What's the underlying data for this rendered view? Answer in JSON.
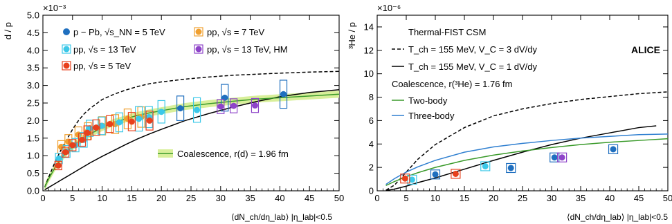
{
  "chart_data": [
    {
      "type": "scatter",
      "ylabel": "d / p",
      "y_multiplier": "×10⁻³",
      "xlabel": "⟨dN_ch/dη_lab⟩ |η_lab|<0.5",
      "xlim": [
        0,
        50
      ],
      "ylim": [
        0,
        5.0
      ],
      "x_ticks": [
        "0",
        "5",
        "10",
        "15",
        "20",
        "25",
        "30",
        "35",
        "40",
        "45",
        "50"
      ],
      "y_ticks": [
        "0.0",
        "0.5",
        "1.0",
        "1.5",
        "2.0",
        "2.5",
        "3.0",
        "3.5",
        "4.0",
        "4.5",
        "5.0"
      ],
      "legend": [
        {
          "label": "p − Pb, √s_NN = 5 TeV",
          "color": "#1f6fbf"
        },
        {
          "label": "pp, √s = 7 TeV",
          "color": "#f0a030"
        },
        {
          "label": "pp, √s = 13 TeV",
          "color": "#3cc8e8"
        },
        {
          "label": "pp, √s = 13 TeV, HM",
          "color": "#8e44c9"
        },
        {
          "label": "pp, √s = 5 TeV",
          "color": "#e8401c"
        }
      ],
      "curve_legend": "Coalescence, r(d) = 1.96 fm",
      "series": [
        {
          "name": "p − Pb, √s_NN = 5 TeV",
          "color": "#1f6fbf",
          "points": [
            [
              23.2,
              2.35,
              0.35
            ],
            [
              30.7,
              2.65,
              0.38
            ],
            [
              40.6,
              2.75,
              0.4
            ]
          ]
        },
        {
          "name": "pp, √s = 7 TeV",
          "color": "#f0a030",
          "points": [
            [
              3.1,
              1.25,
              0.18
            ],
            [
              4.3,
              1.4,
              0.2
            ],
            [
              6.0,
              1.6,
              0.22
            ],
            [
              7.6,
              1.7,
              0.24
            ],
            [
              10.0,
              1.85,
              0.26
            ],
            [
              12.2,
              1.9,
              0.27
            ],
            [
              14.3,
              2.05,
              0.28
            ],
            [
              16.6,
              2.1,
              0.29
            ]
          ]
        },
        {
          "name": "pp, √s = 13 TeV",
          "color": "#3cc8e8",
          "points": [
            [
              2.7,
              0.92,
              0.15
            ],
            [
              4.0,
              1.12,
              0.17
            ],
            [
              5.5,
              1.3,
              0.19
            ],
            [
              6.9,
              1.45,
              0.21
            ],
            [
              7.9,
              1.78,
              0.23
            ],
            [
              9.9,
              1.85,
              0.25
            ],
            [
              12.9,
              1.95,
              0.27
            ],
            [
              16.2,
              2.05,
              0.35
            ],
            [
              17.9,
              2.1,
              0.3
            ],
            [
              20.0,
              2.25,
              0.32
            ],
            [
              26.0,
              2.3,
              0.35
            ]
          ]
        },
        {
          "name": "pp, √s = 13 TeV, HM",
          "color": "#8e44c9",
          "points": [
            [
              30.0,
              2.4,
              0.2
            ],
            [
              32.2,
              2.42,
              0.2
            ],
            [
              35.8,
              2.43,
              0.2
            ]
          ]
        },
        {
          "name": "pp, √s = 5 TeV",
          "color": "#e8401c",
          "points": [
            [
              2.6,
              0.72,
              0.12
            ],
            [
              3.8,
              1.1,
              0.14
            ],
            [
              5.0,
              1.3,
              0.16
            ],
            [
              6.6,
              1.45,
              0.18
            ],
            [
              7.5,
              1.65,
              0.2
            ],
            [
              9.0,
              1.8,
              0.22
            ],
            [
              11.3,
              1.9,
              0.24
            ],
            [
              15.0,
              1.97,
              0.26
            ],
            [
              18.0,
              2.0,
              0.27
            ]
          ]
        }
      ],
      "curves": [
        {
          "style": "dashed",
          "color": "#000000",
          "x": [
            0.3,
            1,
            2,
            3,
            4,
            5,
            6,
            7,
            8,
            10,
            12,
            14,
            16,
            18,
            20,
            24,
            28,
            32,
            36,
            40,
            45,
            50
          ],
          "y": [
            0.1,
            0.4,
            0.8,
            1.15,
            1.45,
            1.75,
            2.0,
            2.2,
            2.35,
            2.6,
            2.75,
            2.87,
            2.97,
            3.05,
            3.1,
            3.18,
            3.24,
            3.29,
            3.32,
            3.35,
            3.38,
            3.4
          ]
        },
        {
          "style": "solid",
          "color": "#000000",
          "x": [
            0.3,
            1,
            2,
            3,
            4,
            5,
            6,
            8,
            10,
            12,
            14,
            16,
            18,
            20,
            24,
            28,
            32,
            36,
            40,
            45,
            50
          ],
          "y": [
            0.03,
            0.1,
            0.2,
            0.3,
            0.4,
            0.5,
            0.6,
            0.8,
            0.98,
            1.15,
            1.32,
            1.48,
            1.62,
            1.75,
            2.0,
            2.2,
            2.38,
            2.54,
            2.68,
            2.8,
            2.88
          ]
        },
        {
          "style": "band",
          "color": "#3a9a2a",
          "band_color": "#d8ef9a",
          "x": [
            0.3,
            1,
            2,
            3,
            4,
            5,
            6,
            8,
            10,
            12,
            14,
            16,
            18,
            20,
            24,
            28,
            32,
            36,
            40,
            45,
            50
          ],
          "y": [
            0.1,
            0.35,
            0.65,
            0.9,
            1.1,
            1.25,
            1.4,
            1.62,
            1.8,
            1.95,
            2.05,
            2.15,
            2.22,
            2.28,
            2.4,
            2.48,
            2.55,
            2.61,
            2.65,
            2.7,
            2.75
          ],
          "band": 0.1
        }
      ]
    },
    {
      "type": "scatter",
      "ylabel": "³He / p",
      "y_multiplier": "×10⁻⁶",
      "xlabel": "⟨dN_ch/dη_lab⟩ |η_lab|<0.5",
      "xlim": [
        0,
        50
      ],
      "ylim": [
        0,
        15
      ],
      "x_ticks": [
        "0",
        "5",
        "10",
        "15",
        "20",
        "25",
        "30",
        "35",
        "40",
        "45",
        "50"
      ],
      "y_ticks": [
        "0",
        "2",
        "4",
        "6",
        "8",
        "10",
        "12",
        "14"
      ],
      "annotation_header": "Thermal-FIST CSM",
      "annotation_thermal": [
        "T_ch = 155 MeV, V_C = 3 dV/dy",
        "T_ch = 155 MeV, V_C = 1 dV/dy"
      ],
      "annotation_coal": "Coalescence, r(³He) = 1.76 fm",
      "curve_labels": [
        "Two-body",
        "Three-body"
      ],
      "alice_label": "ALICE",
      "series": [
        {
          "name": "p − Pb, √s_NN = 5 TeV",
          "color": "#1f6fbf",
          "points": [
            [
              23.0,
              1.95
            ],
            [
              30.5,
              2.85
            ],
            [
              40.6,
              3.55
            ]
          ]
        },
        {
          "name": "pp, √s = 13 TeV",
          "color": "#3cc8e8",
          "points": [
            [
              6.0,
              0.95
            ],
            [
              18.6,
              2.1
            ]
          ]
        },
        {
          "name": "pp, √s = 13 TeV, HM",
          "color": "#8e44c9",
          "points": [
            [
              31.8,
              2.85
            ]
          ]
        },
        {
          "name": "pp, √s = 5 TeV",
          "color": "#e8401c",
          "points": [
            [
              4.8,
              1.05
            ],
            [
              13.5,
              1.45
            ]
          ]
        },
        {
          "name": "pp, √s = 7 TeV",
          "color": "#1f6fbf",
          "points": [
            [
              10.0,
              1.4
            ]
          ]
        }
      ],
      "curves": [
        {
          "style": "dashed",
          "color": "#000000",
          "x": [
            1.5,
            3,
            5,
            7,
            10,
            15,
            20,
            25,
            30,
            35,
            40,
            45,
            50
          ],
          "y": [
            0.05,
            0.5,
            1.6,
            2.7,
            3.95,
            5.4,
            6.4,
            7.0,
            7.45,
            7.8,
            8.05,
            8.3,
            8.45
          ]
        },
        {
          "style": "solid",
          "color": "#000000",
          "x": [
            1.5,
            3,
            5,
            7,
            10,
            15,
            20,
            25,
            30,
            35,
            40,
            45,
            48
          ],
          "y": [
            0.02,
            0.15,
            0.4,
            0.7,
            1.1,
            1.85,
            2.6,
            3.3,
            3.95,
            4.5,
            4.95,
            5.4,
            5.55
          ]
        },
        {
          "style": "solid",
          "color": "#3a9a2a",
          "x": [
            1.5,
            3,
            5,
            7,
            10,
            15,
            20,
            25,
            30,
            35,
            40,
            45,
            50
          ],
          "y": [
            0.45,
            0.8,
            1.2,
            1.55,
            2.0,
            2.6,
            3.05,
            3.4,
            3.7,
            3.95,
            4.15,
            4.3,
            4.45
          ]
        },
        {
          "style": "solid",
          "color": "#2f7fd0",
          "x": [
            1.5,
            3,
            5,
            7,
            10,
            15,
            20,
            25,
            30,
            35,
            40,
            45,
            50
          ],
          "y": [
            0.55,
            1.05,
            1.6,
            2.05,
            2.6,
            3.3,
            3.75,
            4.05,
            4.3,
            4.5,
            4.65,
            4.8,
            4.85
          ]
        }
      ]
    }
  ]
}
